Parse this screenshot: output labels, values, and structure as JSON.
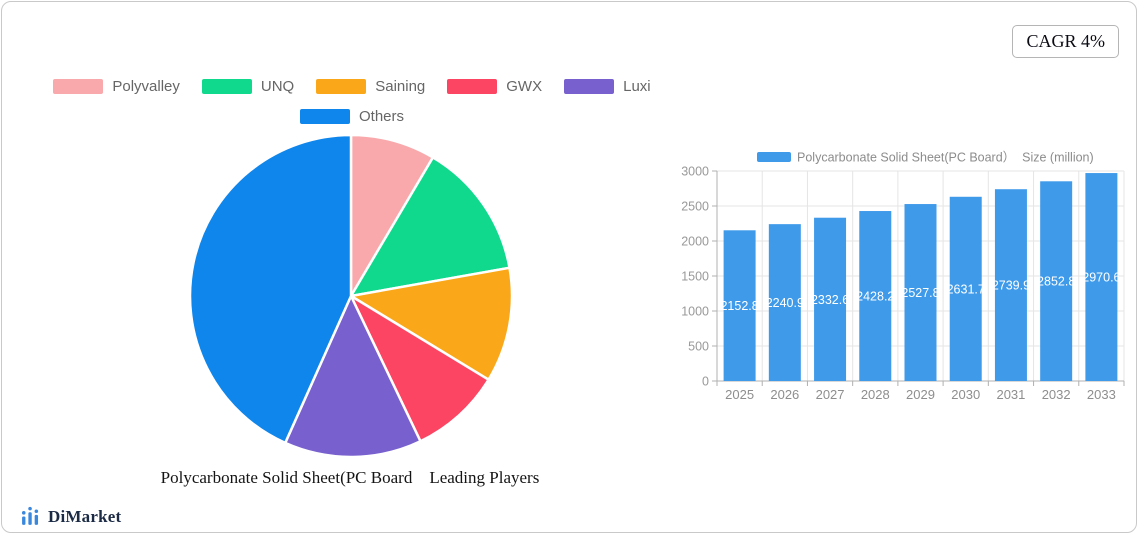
{
  "badge": {
    "label": "CAGR 4%"
  },
  "brand": {
    "name": "DiMarket",
    "logo_color": "#3a87de"
  },
  "chart_data": [
    {
      "type": "pie",
      "title": "Polycarbonate Solid Sheet(PC Board    Leading Players",
      "legend_position": "top",
      "legend_rows": [
        [
          "Polyvalley",
          "UNQ",
          "Saining",
          "GWX",
          "Luxi"
        ],
        [
          "Others"
        ]
      ],
      "start_angle": "top",
      "clockwise": true,
      "series": [
        {
          "name": "Polyvalley",
          "value": 8.5,
          "color": "#F9A8AB"
        },
        {
          "name": "UNQ",
          "value": 13.7,
          "color": "#10D98E"
        },
        {
          "name": "Saining",
          "value": 11.5,
          "color": "#FAA819"
        },
        {
          "name": "GWX",
          "value": 9.2,
          "color": "#FB4562"
        },
        {
          "name": "Luxi",
          "value": 13.8,
          "color": "#7861CE"
        },
        {
          "name": "Others",
          "value": 43.3,
          "color": "#0F86EC"
        }
      ]
    },
    {
      "type": "bar",
      "legend_label": "Polycarbonate Solid Sheet(PC Board）  Size (million)",
      "categories": [
        "2025",
        "2026",
        "2027",
        "2028",
        "2029",
        "2030",
        "2031",
        "2032",
        "2033"
      ],
      "values": [
        2152.8,
        2240.9,
        2332.6,
        2428.2,
        2527.8,
        2631.7,
        2739.9,
        2852.8,
        2970.6
      ],
      "ylim": [
        0,
        3000
      ],
      "yticks": [
        0,
        500,
        1000,
        1500,
        2000,
        2500,
        3000
      ],
      "grid": true,
      "bar_color": "#3F9AEA",
      "value_label_color": "#ffffff",
      "axis_label_color": "#999999",
      "legend_text_color": "#8c8c8c",
      "gridline_color": "#e5e5e5",
      "axis_line_color": "#b0b0b0"
    }
  ]
}
